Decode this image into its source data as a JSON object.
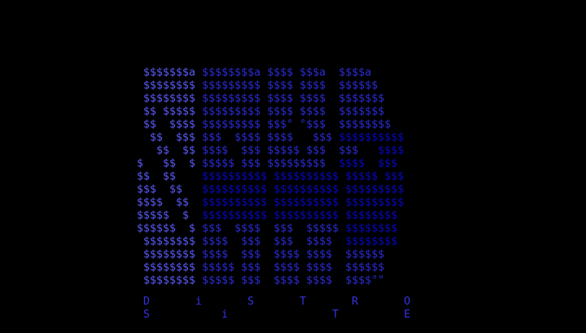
{
  "palette": {
    "background": "#000000",
    "light": "#5B5BFB",
    "mid": "#2B2BD5",
    "dark": "#0808C0",
    "footer": "#3333E0"
  },
  "art": {
    "description": "dollar-sign-ascii-logo",
    "glyph": "$",
    "lines": [
      [
        [
          " $$$$$$$a",
          "light"
        ],
        [
          " $$$$$$$$a $$$$ $$$a  $$$$a",
          "mid"
        ]
      ],
      [
        [
          " $$$$$$$$",
          "light"
        ],
        [
          " $$$$$$$$$ $$$$ $$$$  $$$$$$",
          "mid"
        ]
      ],
      [
        [
          " $$$$$$$$",
          "light"
        ],
        [
          " $$$$$$$$$ $$$$ $$$$  $$$$$$$",
          "mid"
        ]
      ],
      [
        [
          " $$ $$$$$",
          "light"
        ],
        [
          " $$$$$$$$$ $$$$ $$$$  $$$$$$$",
          "mid"
        ]
      ],
      [
        [
          " $$  $$$$",
          "light"
        ],
        [
          " $$$$$$$$$ $$$° °$$$  $$$$$$$$",
          "mid"
        ]
      ],
      [
        [
          "  $$  $$$",
          "light"
        ],
        [
          " $$$  $$$$ $$$$   $$$ ",
          "mid"
        ],
        [
          "$$$$$$$$$$",
          "dark"
        ]
      ],
      [
        [
          "   $$  $$",
          "light"
        ],
        [
          " $$$$  $$$ $$$$$ $$$  $$$   ",
          "mid"
        ],
        [
          "$$$$",
          "dark"
        ]
      ],
      [
        [
          "$   $$  $",
          "light"
        ],
        [
          " $$$$$ $$$ $$$$$$$$$  ",
          "mid"
        ],
        [
          "$$$$  $$$",
          "dark"
        ]
      ],
      [
        [
          "$$  $$    ",
          "light"
        ],
        [
          "$$$$$$$$$$ $$$$$$$$$$ $$$$$ $$$",
          "dark"
        ]
      ],
      [
        [
          "$$$  $$   ",
          "light"
        ],
        [
          "$$$$$$$$$$ $$$$$$$$$$ $$$$$$$$$",
          "dark"
        ]
      ],
      [
        [
          "$$$$  $$  ",
          "light"
        ],
        [
          "$$$$$$$$$$ $$$$$$$$$$ $$$$$$$$$",
          "dark"
        ]
      ],
      [
        [
          "$$$$$  $  ",
          "light"
        ],
        [
          "$$$$$$$$$$ $$$$$$$$$$ $$$$$$$$",
          "dark"
        ]
      ],
      [
        [
          "$$$$$$  $ ",
          "light"
        ],
        [
          "$$$  $$$$  $$$  $$$$$ ",
          "mid"
        ],
        [
          "$$$$$$$$",
          "dark"
        ]
      ],
      [
        [
          " $$$$$$$$",
          "light"
        ],
        [
          " $$$$  $$$  $$$  $$$$  ",
          "mid"
        ],
        [
          "$$$$$$$$",
          "dark"
        ]
      ],
      [
        [
          " $$$$$$$$",
          "light"
        ],
        [
          " $$$$  $$$  $$$$ $$$$  $$$$$$",
          "mid"
        ]
      ],
      [
        [
          " $$$$$$$$",
          "light"
        ],
        [
          " $$$$$ $$$  $$$$ $$$$  $$$$$$",
          "mid"
        ]
      ],
      [
        [
          " $$$$$$$$",
          "light"
        ],
        [
          " $$$$$ $$$  $$$$ $$$$  $$$$°\"",
          "mid"
        ]
      ]
    ]
  },
  "footer": {
    "line1": " D       i       S       T       R       O",
    "line2": " S           i                T          E",
    "text_plain": "DISTRO SITE"
  }
}
